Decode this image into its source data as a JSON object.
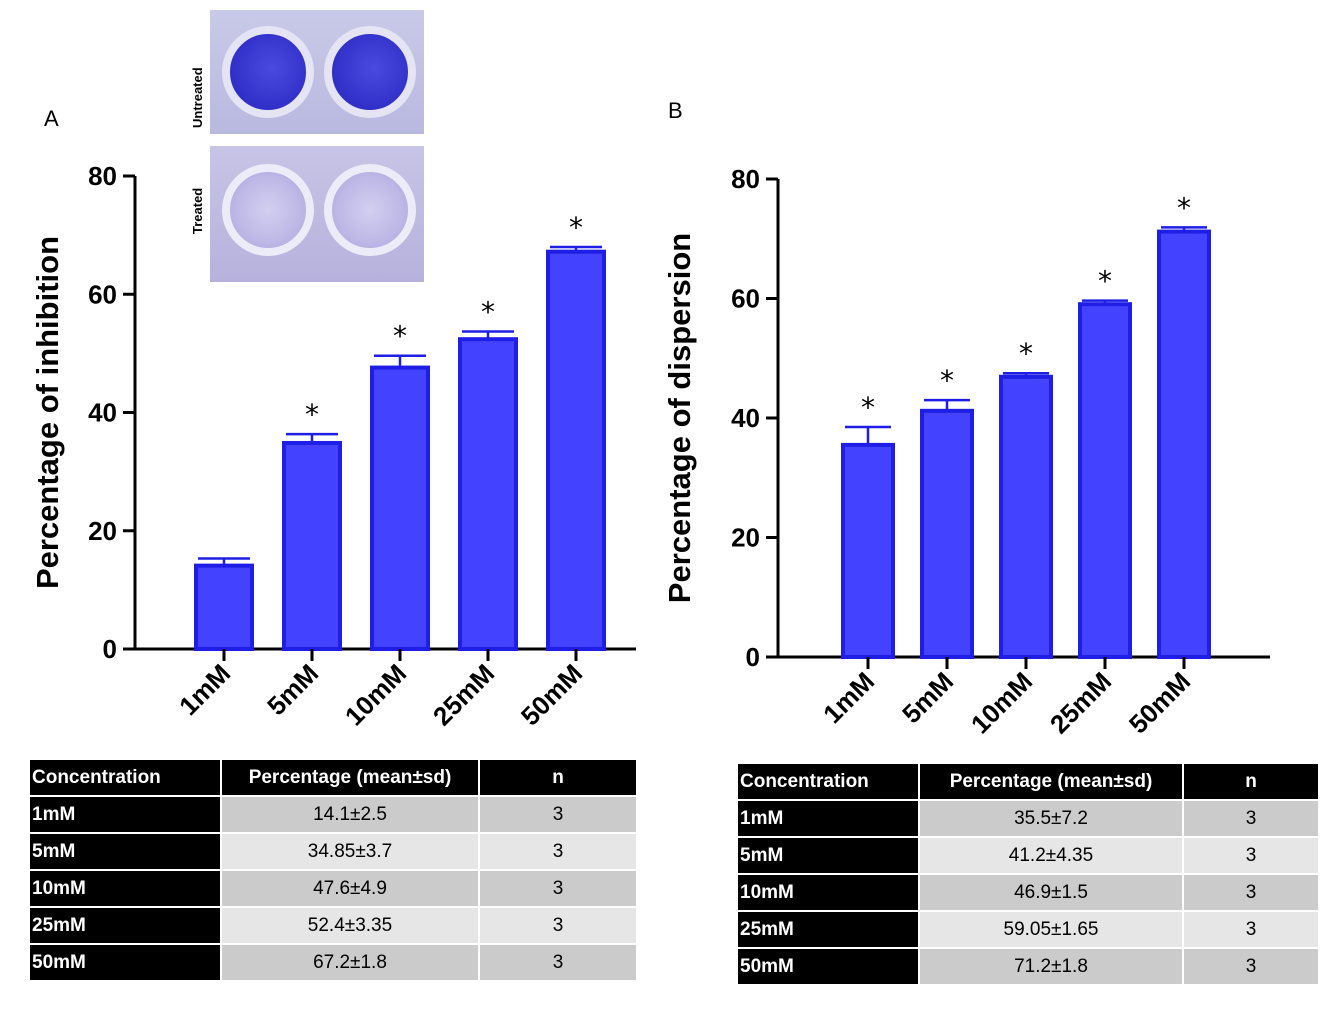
{
  "panel_labels": {
    "a": "A",
    "b": "B"
  },
  "inset": {
    "top_label": "Untreated",
    "bottom_label": "Treated"
  },
  "chart_data": [
    {
      "type": "bar",
      "panel": "A",
      "categories": [
        "1mM",
        "5mM",
        "10mM",
        "25mM",
        "50mM"
      ],
      "values": [
        14.1,
        34.85,
        47.6,
        52.4,
        67.2
      ],
      "error_bars": [
        1.2,
        1.5,
        2.0,
        1.3,
        0.8
      ],
      "significance": [
        "",
        "*",
        "*",
        "*",
        "*"
      ],
      "ylabel": "Percentage of inhibition",
      "xlabel": "",
      "ylim": [
        0,
        80
      ],
      "yticks": [
        0,
        20,
        40,
        60,
        80
      ],
      "bar_color": "#4343ff",
      "bar_edge_color": "#1e1ee6"
    },
    {
      "type": "bar",
      "panel": "B",
      "categories": [
        "1mM",
        "5mM",
        "10mM",
        "25mM",
        "50mM"
      ],
      "values": [
        35.5,
        41.2,
        46.9,
        59.05,
        71.2
      ],
      "error_bars": [
        3.0,
        1.8,
        0.6,
        0.6,
        0.7
      ],
      "significance": [
        "*",
        "*",
        "*",
        "*",
        "*"
      ],
      "ylabel": "Percentage of dispersion",
      "xlabel": "",
      "ylim": [
        0,
        80
      ],
      "yticks": [
        0,
        20,
        40,
        60,
        80
      ],
      "bar_color": "#4343ff",
      "bar_edge_color": "#1e1ee6"
    }
  ],
  "tables": [
    {
      "headers": [
        "Concentration",
        "Percentage (mean±sd)",
        "n"
      ],
      "rows": [
        [
          "1mM",
          "14.1±2.5",
          "3"
        ],
        [
          "5mM",
          "34.85±3.7",
          "3"
        ],
        [
          "10mM",
          "47.6±4.9",
          "3"
        ],
        [
          "25mM",
          "52.4±3.35",
          "3"
        ],
        [
          "50mM",
          "67.2±1.8",
          "3"
        ]
      ]
    },
    {
      "headers": [
        "Concentration",
        "Percentage (mean±sd)",
        "n"
      ],
      "rows": [
        [
          "1mM",
          "35.5±7.2",
          "3"
        ],
        [
          "5mM",
          "41.2±4.35",
          "3"
        ],
        [
          "10mM",
          "46.9±1.5",
          "3"
        ],
        [
          "25mM",
          "59.05±1.65",
          "3"
        ],
        [
          "50mM",
          "71.2±1.8",
          "3"
        ]
      ]
    }
  ]
}
